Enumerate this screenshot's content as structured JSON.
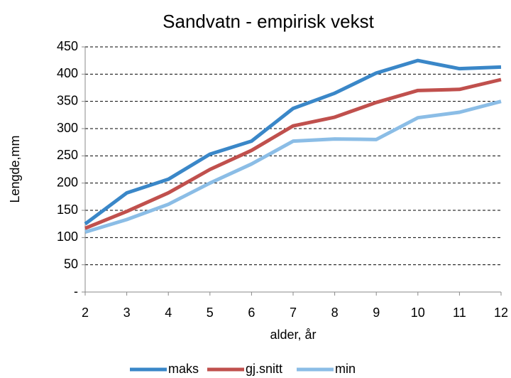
{
  "chart_data": {
    "type": "line",
    "title": "Sandvatn - empirisk vekst",
    "x_label": "alder, år",
    "y_label": "Lengde,mm",
    "x": [
      2,
      3,
      4,
      5,
      6,
      7,
      8,
      9,
      10,
      11,
      12
    ],
    "series": [
      {
        "name": "maks",
        "color": "#3a87c8",
        "values": [
          125,
          182,
          207,
          253,
          277,
          337,
          365,
          402,
          425,
          410,
          413
        ]
      },
      {
        "name": "gj.snitt",
        "color": "#c0504d",
        "values": [
          117,
          148,
          182,
          225,
          260,
          305,
          321,
          348,
          370,
          372,
          390
        ]
      },
      {
        "name": "min",
        "color": "#8bbde6",
        "values": [
          110,
          133,
          161,
          200,
          235,
          277,
          281,
          280,
          320,
          330,
          350
        ]
      }
    ],
    "xlim": [
      2,
      12
    ],
    "xticks": [
      2,
      3,
      4,
      5,
      6,
      7,
      8,
      9,
      10,
      11,
      12
    ],
    "ylim": [
      0,
      450
    ],
    "yticks": [
      {
        "value": 0,
        "label": "-"
      },
      50,
      100,
      150,
      200,
      250,
      300,
      350,
      400,
      450
    ],
    "grid": true,
    "legend": "bottom"
  }
}
